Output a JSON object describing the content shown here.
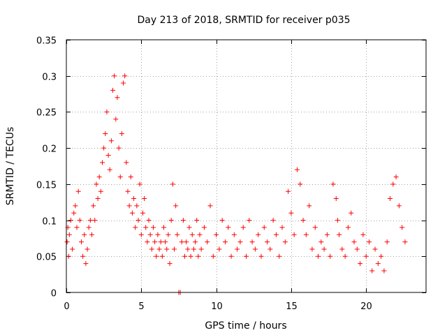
{
  "chart_data": {
    "type": "scatter",
    "title": "Day 213 of 2018, SRMTID for receiver p035",
    "xlabel": "GPS time / hours",
    "ylabel": "SRMTID / TECUs",
    "xlim": [
      0,
      24
    ],
    "ylim": [
      0,
      0.35
    ],
    "xticks": [
      "0",
      "5",
      "10",
      "15",
      "20"
    ],
    "yticks": [
      "0",
      "0.05",
      "0.1",
      "0.15",
      "0.2",
      "0.25",
      "0.3",
      "0.35"
    ],
    "grid": true,
    "marker": "plus",
    "color": "#ff0000",
    "series": [
      {
        "name": "SRMTID",
        "x": [
          0.05,
          0.1,
          0.15,
          0.2,
          0.3,
          0.4,
          0.5,
          0.6,
          0.7,
          0.8,
          0.9,
          1.0,
          1.1,
          1.2,
          1.3,
          1.4,
          1.5,
          1.6,
          1.7,
          1.8,
          1.9,
          2.0,
          2.1,
          2.2,
          2.3,
          2.4,
          2.5,
          2.6,
          2.7,
          2.8,
          2.9,
          3.0,
          3.1,
          3.2,
          3.3,
          3.4,
          3.5,
          3.6,
          3.7,
          3.8,
          3.9,
          4.0,
          4.1,
          4.2,
          4.3,
          4.4,
          4.5,
          4.6,
          4.7,
          4.8,
          4.9,
          5.0,
          5.1,
          5.2,
          5.3,
          5.4,
          5.5,
          5.6,
          5.7,
          5.8,
          5.9,
          6.0,
          6.1,
          6.2,
          6.3,
          6.4,
          6.5,
          6.6,
          6.7,
          6.8,
          6.9,
          7.0,
          7.1,
          7.2,
          7.3,
          7.4,
          7.5,
          7.6,
          7.7,
          7.8,
          7.9,
          8.0,
          8.1,
          8.2,
          8.3,
          8.4,
          8.5,
          8.6,
          8.7,
          8.8,
          8.9,
          9.0,
          9.2,
          9.4,
          9.6,
          9.8,
          10.0,
          10.2,
          10.4,
          10.6,
          10.8,
          11.0,
          11.2,
          11.4,
          11.6,
          11.8,
          12.0,
          12.2,
          12.4,
          12.6,
          12.8,
          13.0,
          13.2,
          13.4,
          13.6,
          13.8,
          14.0,
          14.2,
          14.4,
          14.6,
          14.8,
          15.0,
          15.2,
          15.4,
          15.6,
          15.8,
          16.0,
          16.2,
          16.4,
          16.6,
          16.8,
          17.0,
          17.2,
          17.4,
          17.6,
          17.8,
          18.0,
          18.1,
          18.2,
          18.4,
          18.6,
          18.8,
          19.0,
          19.2,
          19.4,
          19.6,
          19.8,
          20.0,
          20.2,
          20.4,
          20.6,
          20.8,
          21.0,
          21.2,
          21.4,
          21.6,
          21.8,
          22.0,
          22.2,
          22.4,
          22.6
        ],
        "y": [
          0.07,
          0.09,
          0.05,
          0.08,
          0.1,
          0.06,
          0.11,
          0.12,
          0.09,
          0.14,
          0.1,
          0.07,
          0.05,
          0.08,
          0.04,
          0.06,
          0.09,
          0.1,
          0.08,
          0.12,
          0.1,
          0.15,
          0.13,
          0.16,
          0.14,
          0.18,
          0.2,
          0.22,
          0.25,
          0.19,
          0.17,
          0.21,
          0.28,
          0.3,
          0.24,
          0.27,
          0.2,
          0.16,
          0.22,
          0.29,
          0.3,
          0.18,
          0.14,
          0.12,
          0.16,
          0.11,
          0.13,
          0.09,
          0.12,
          0.1,
          0.15,
          0.08,
          0.11,
          0.13,
          0.09,
          0.07,
          0.1,
          0.08,
          0.06,
          0.09,
          0.07,
          0.05,
          0.08,
          0.06,
          0.07,
          0.05,
          0.09,
          0.07,
          0.06,
          0.08,
          0.04,
          0.1,
          0.15,
          0.06,
          0.12,
          0.08,
          0.0,
          0.0,
          0.07,
          0.1,
          0.05,
          0.07,
          0.06,
          0.09,
          0.05,
          0.08,
          0.06,
          0.07,
          0.1,
          0.05,
          0.08,
          0.06,
          0.09,
          0.07,
          0.12,
          0.05,
          0.08,
          0.06,
          0.1,
          0.07,
          0.09,
          0.05,
          0.08,
          0.06,
          0.07,
          0.09,
          0.05,
          0.1,
          0.07,
          0.06,
          0.08,
          0.05,
          0.09,
          0.07,
          0.06,
          0.1,
          0.08,
          0.05,
          0.09,
          0.07,
          0.14,
          0.11,
          0.08,
          0.17,
          0.15,
          0.1,
          0.08,
          0.12,
          0.06,
          0.09,
          0.05,
          0.07,
          0.06,
          0.08,
          0.05,
          0.15,
          0.13,
          0.1,
          0.08,
          0.06,
          0.05,
          0.09,
          0.11,
          0.07,
          0.06,
          0.04,
          0.08,
          0.05,
          0.07,
          0.03,
          0.06,
          0.04,
          0.05,
          0.03,
          0.07,
          0.13,
          0.15,
          0.16,
          0.12,
          0.09,
          0.07
        ]
      }
    ]
  }
}
